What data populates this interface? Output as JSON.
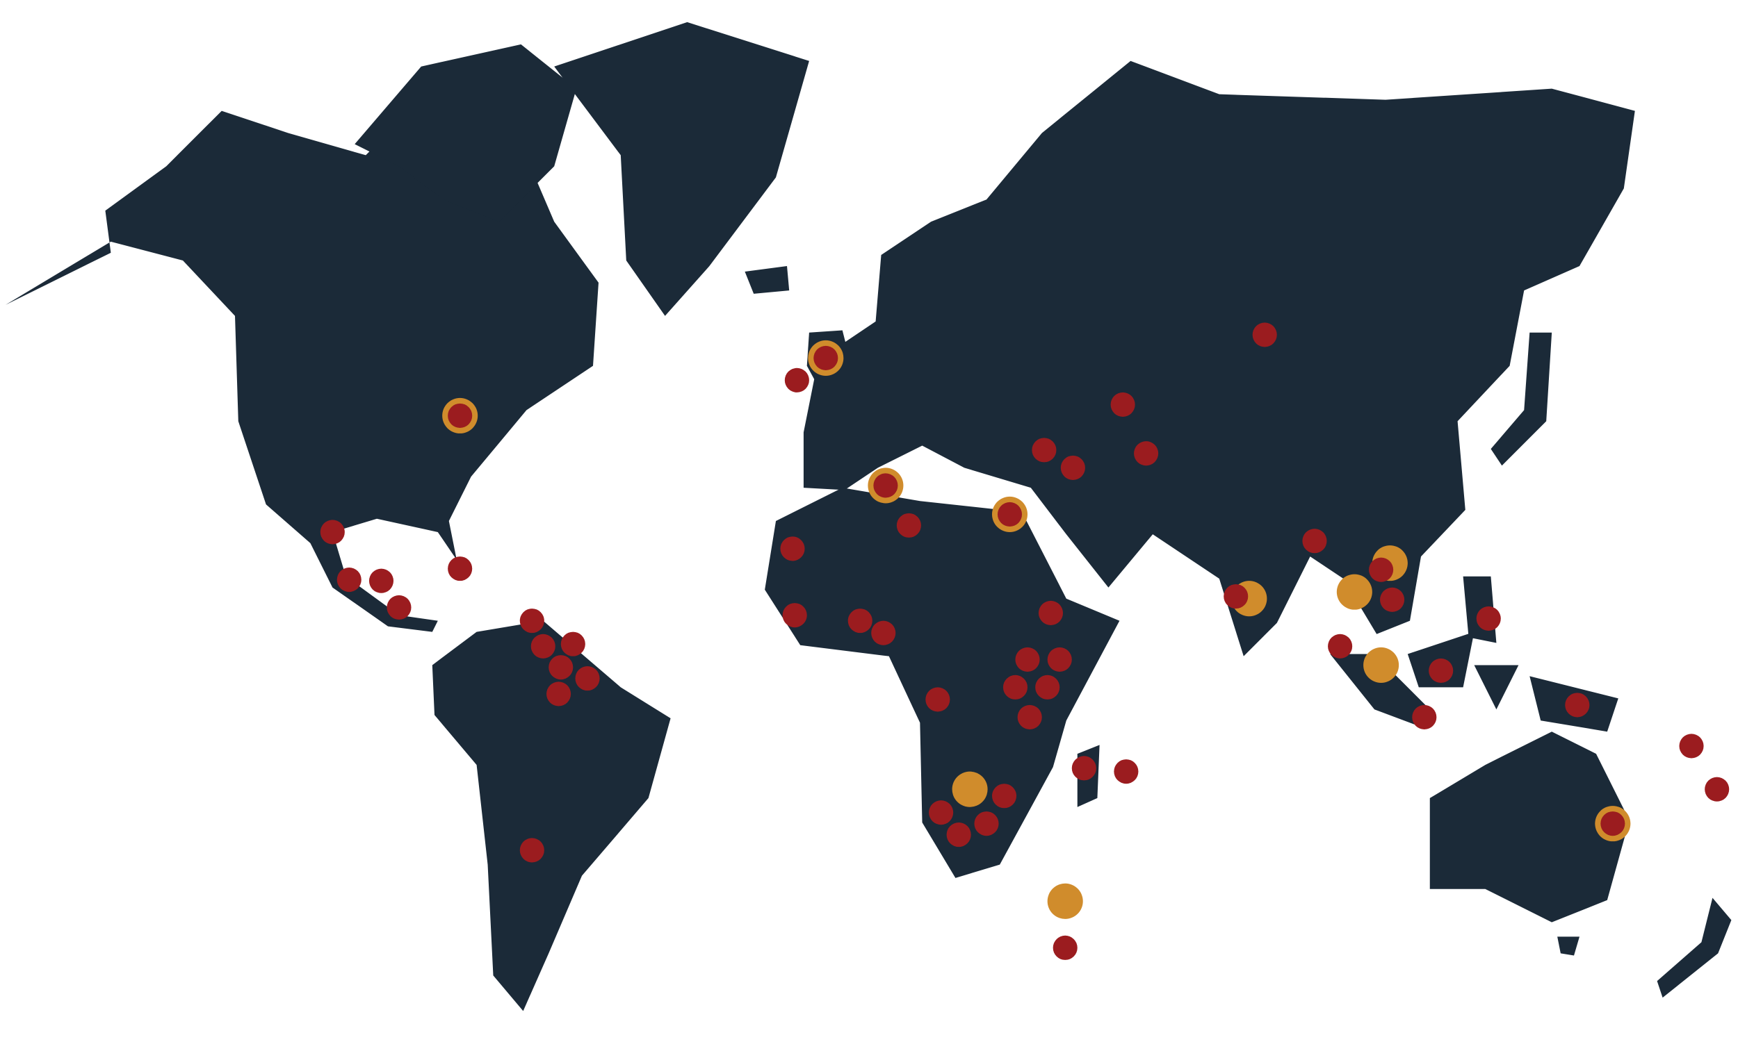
{
  "map": {
    "land_color": "#1b2a38",
    "background": "#ffffff",
    "marker_color": "#9b1c1f",
    "highlight_color": "#d08c2c"
  }
}
